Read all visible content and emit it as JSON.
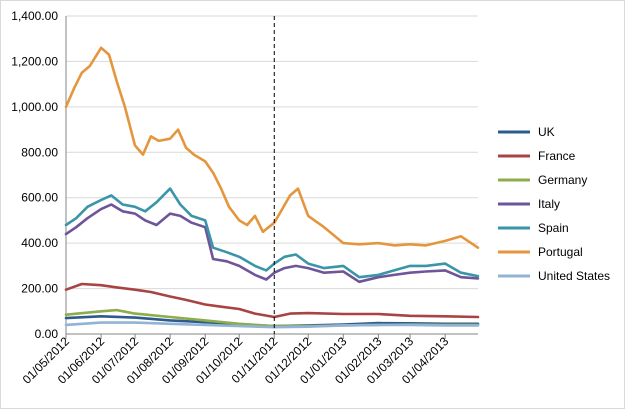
{
  "chart_data": {
    "type": "line",
    "title": "",
    "xlabel": "",
    "ylabel": "",
    "ylim": [
      0,
      1400
    ],
    "y_ticks": [
      0,
      200,
      400,
      600,
      800,
      1000,
      1200,
      1400
    ],
    "y_tick_labels": [
      "0.00",
      "200.00",
      "400.00",
      "600.00",
      "800.00",
      "1,000.00",
      "1,200.00",
      "1,400.00"
    ],
    "grid": "horizontal major gridlines",
    "legend_position": "right",
    "x_range": [
      "2012-05-01",
      "2013-04-30"
    ],
    "x_ticks": [
      "2012-05-01",
      "2012-06-01",
      "2012-07-01",
      "2012-08-01",
      "2012-09-01",
      "2012-10-01",
      "2012-11-01",
      "2012-12-01",
      "2013-01-01",
      "2013-02-01",
      "2013-03-01",
      "2013-04-01"
    ],
    "x_tick_labels": [
      "01/05/2012",
      "01/06/2012",
      "01/07/2012",
      "01/08/2012",
      "01/09/2012",
      "01/10/2012",
      "01/11/2012",
      "01/12/2012",
      "01/01/2013",
      "01/02/2013",
      "01/03/2013",
      "01/04/2013"
    ],
    "vertical_marker": "2012-11-01",
    "series": [
      {
        "name": "UK",
        "color": "#2e5b8c",
        "x": [
          "2012-05-01",
          "2012-06-01",
          "2012-07-01",
          "2012-08-01",
          "2012-09-01",
          "2012-10-01",
          "2012-11-01",
          "2012-12-01",
          "2013-01-01",
          "2013-02-01",
          "2013-03-01",
          "2013-04-01",
          "2013-04-30"
        ],
        "values": [
          70,
          78,
          72,
          60,
          52,
          42,
          35,
          38,
          42,
          48,
          47,
          45,
          45
        ]
      },
      {
        "name": "France",
        "color": "#a84442",
        "x": [
          "2012-05-01",
          "2012-05-15",
          "2012-06-01",
          "2012-06-15",
          "2012-07-01",
          "2012-07-15",
          "2012-08-01",
          "2012-08-15",
          "2012-09-01",
          "2012-09-15",
          "2012-10-01",
          "2012-10-15",
          "2012-11-01",
          "2012-11-15",
          "2012-12-01",
          "2013-01-01",
          "2013-02-01",
          "2013-03-01",
          "2013-04-01",
          "2013-04-30"
        ],
        "values": [
          195,
          220,
          215,
          205,
          195,
          185,
          165,
          150,
          130,
          120,
          110,
          90,
          75,
          90,
          92,
          88,
          88,
          80,
          78,
          75
        ]
      },
      {
        "name": "Germany",
        "color": "#8cad4a",
        "x": [
          "2012-05-01",
          "2012-06-01",
          "2012-06-15",
          "2012-07-01",
          "2012-08-01",
          "2012-09-01",
          "2012-10-01",
          "2012-11-01",
          "2012-12-01",
          "2013-01-01",
          "2013-02-01",
          "2013-03-01",
          "2013-04-01",
          "2013-04-30"
        ],
        "values": [
          85,
          100,
          105,
          90,
          75,
          60,
          45,
          35,
          35,
          38,
          40,
          42,
          40,
          40
        ]
      },
      {
        "name": "Italy",
        "color": "#6e5599",
        "x": [
          "2012-05-01",
          "2012-05-10",
          "2012-05-20",
          "2012-06-01",
          "2012-06-10",
          "2012-06-20",
          "2012-07-01",
          "2012-07-10",
          "2012-07-20",
          "2012-08-01",
          "2012-08-10",
          "2012-08-20",
          "2012-09-01",
          "2012-09-08",
          "2012-09-20",
          "2012-10-01",
          "2012-10-15",
          "2012-10-25",
          "2012-11-01",
          "2012-11-10",
          "2012-11-20",
          "2012-12-01",
          "2012-12-15",
          "2013-01-01",
          "2013-01-15",
          "2013-02-01",
          "2013-02-15",
          "2013-03-01",
          "2013-03-15",
          "2013-04-01",
          "2013-04-15",
          "2013-04-30"
        ],
        "values": [
          440,
          470,
          510,
          550,
          570,
          540,
          530,
          500,
          480,
          530,
          520,
          490,
          470,
          330,
          320,
          300,
          260,
          240,
          270,
          290,
          300,
          290,
          270,
          275,
          230,
          250,
          260,
          270,
          275,
          280,
          250,
          245
        ]
      },
      {
        "name": "Spain",
        "color": "#3a95a8",
        "x": [
          "2012-05-01",
          "2012-05-10",
          "2012-05-20",
          "2012-06-01",
          "2012-06-10",
          "2012-06-20",
          "2012-07-01",
          "2012-07-10",
          "2012-07-20",
          "2012-08-01",
          "2012-08-10",
          "2012-08-20",
          "2012-09-01",
          "2012-09-08",
          "2012-09-20",
          "2012-10-01",
          "2012-10-15",
          "2012-10-25",
          "2012-11-01",
          "2012-11-10",
          "2012-11-20",
          "2012-12-01",
          "2012-12-15",
          "2013-01-01",
          "2013-01-15",
          "2013-02-01",
          "2013-02-15",
          "2013-03-01",
          "2013-03-15",
          "2013-04-01",
          "2013-04-15",
          "2013-04-30"
        ],
        "values": [
          480,
          510,
          560,
          590,
          610,
          570,
          560,
          540,
          580,
          640,
          570,
          520,
          500,
          380,
          360,
          340,
          300,
          280,
          310,
          340,
          350,
          310,
          290,
          300,
          250,
          260,
          280,
          300,
          300,
          310,
          270,
          255
        ]
      },
      {
        "name": "Portugal",
        "color": "#e4963d",
        "x": [
          "2012-05-01",
          "2012-05-08",
          "2012-05-15",
          "2012-05-22",
          "2012-06-01",
          "2012-06-08",
          "2012-06-15",
          "2012-06-22",
          "2012-07-01",
          "2012-07-08",
          "2012-07-15",
          "2012-07-22",
          "2012-08-01",
          "2012-08-08",
          "2012-08-15",
          "2012-08-22",
          "2012-09-01",
          "2012-09-08",
          "2012-09-15",
          "2012-09-22",
          "2012-10-01",
          "2012-10-08",
          "2012-10-15",
          "2012-10-22",
          "2012-11-01",
          "2012-11-08",
          "2012-11-15",
          "2012-11-22",
          "2012-12-01",
          "2012-12-15",
          "2013-01-01",
          "2013-01-15",
          "2013-02-01",
          "2013-02-15",
          "2013-03-01",
          "2013-03-15",
          "2013-04-01",
          "2013-04-15",
          "2013-04-30"
        ],
        "values": [
          1000,
          1080,
          1150,
          1180,
          1260,
          1230,
          1110,
          1000,
          830,
          790,
          870,
          850,
          860,
          900,
          820,
          790,
          760,
          710,
          640,
          560,
          500,
          480,
          520,
          450,
          490,
          550,
          610,
          640,
          520,
          470,
          400,
          395,
          400,
          390,
          395,
          390,
          410,
          430,
          380
        ]
      },
      {
        "name": "United States",
        "color": "#92b3d6",
        "x": [
          "2012-05-01",
          "2012-06-01",
          "2012-07-01",
          "2012-08-01",
          "2012-09-01",
          "2012-10-01",
          "2012-11-01",
          "2012-12-01",
          "2013-01-01",
          "2013-02-01",
          "2013-03-01",
          "2013-04-01",
          "2013-04-30"
        ],
        "values": [
          40,
          50,
          50,
          45,
          40,
          35,
          30,
          32,
          38,
          40,
          40,
          38,
          38
        ]
      }
    ]
  }
}
